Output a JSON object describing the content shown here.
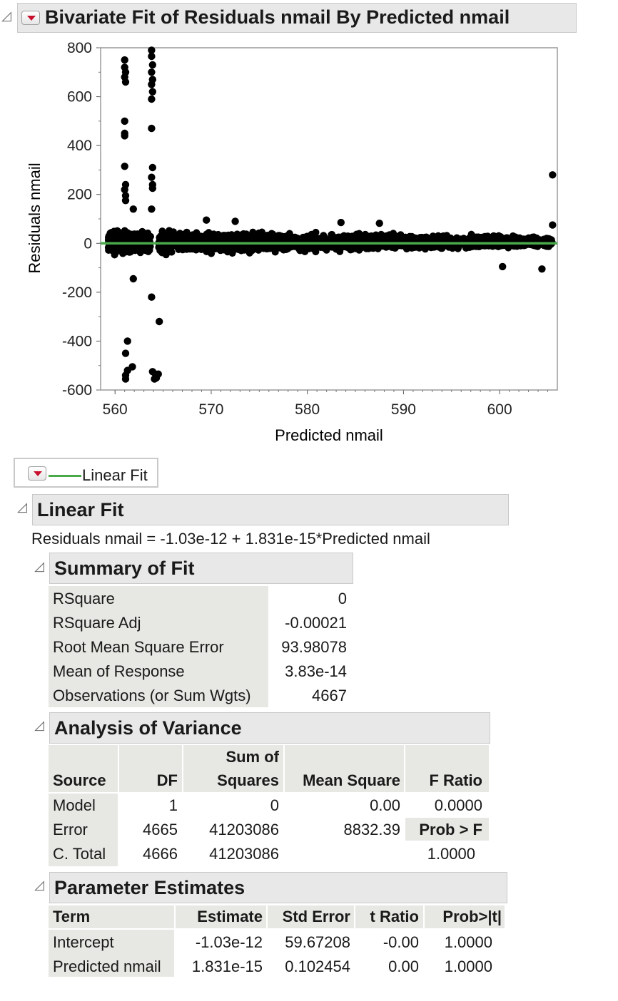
{
  "report": {
    "title": "Bivariate Fit of Residuals nmail By Predicted nmail"
  },
  "chart_data": {
    "type": "scatter",
    "xlabel": "Predicted nmail",
    "ylabel": "Residuals nmail",
    "xlim": [
      558.5,
      606
    ],
    "ylim": [
      -600,
      800
    ],
    "x_ticks": [
      "560",
      "570",
      "580",
      "590",
      "600"
    ],
    "y_ticks": [
      "800",
      "600",
      "400",
      "200",
      "0",
      "-200",
      "-400",
      "-600"
    ],
    "fit_line": {
      "intercept": 0,
      "slope": 0,
      "color": "#4aaa4a"
    },
    "point_color": "#000000",
    "outliers": [
      [
        561.0,
        750
      ],
      [
        561.0,
        720
      ],
      [
        561.1,
        700
      ],
      [
        561.0,
        680
      ],
      [
        561.1,
        660
      ],
      [
        561.0,
        500
      ],
      [
        561.0,
        450
      ],
      [
        561.0,
        440
      ],
      [
        561.0,
        315
      ],
      [
        561.1,
        240
      ],
      [
        561.0,
        220
      ],
      [
        561.1,
        195
      ],
      [
        561.1,
        175
      ],
      [
        561.9,
        140
      ],
      [
        561.9,
        -145
      ],
      [
        561.3,
        -400
      ],
      [
        561.1,
        -450
      ],
      [
        561.3,
        -520
      ],
      [
        561.1,
        -540
      ],
      [
        561.1,
        -555
      ],
      [
        561.8,
        -505
      ],
      [
        563.8,
        790
      ],
      [
        563.8,
        765
      ],
      [
        563.9,
        730
      ],
      [
        563.8,
        700
      ],
      [
        563.9,
        670
      ],
      [
        563.8,
        650
      ],
      [
        563.9,
        620
      ],
      [
        563.8,
        590
      ],
      [
        563.8,
        470
      ],
      [
        563.9,
        310
      ],
      [
        563.8,
        270
      ],
      [
        563.9,
        240
      ],
      [
        563.9,
        225
      ],
      [
        563.8,
        140
      ],
      [
        563.8,
        -220
      ],
      [
        564.6,
        -320
      ],
      [
        563.9,
        -525
      ],
      [
        564.2,
        -535
      ],
      [
        564.5,
        -535
      ],
      [
        564.1,
        -555
      ],
      [
        564.3,
        -550
      ],
      [
        600.3,
        -95
      ],
      [
        604.4,
        -105
      ],
      [
        605.5,
        280
      ],
      [
        605.5,
        75
      ],
      [
        569.5,
        95
      ],
      [
        572.5,
        90
      ],
      [
        583.5,
        85
      ],
      [
        587.5,
        82
      ]
    ]
  },
  "linear_fit_legend": {
    "label": "Linear Fit",
    "line_color": "#4aaa4a"
  },
  "linear_fit": {
    "title": "Linear Fit",
    "equation": "Residuals nmail = -1.03e-12 + 1.831e-15*Predicted nmail"
  },
  "summary_of_fit": {
    "title": "Summary of Fit",
    "rows": [
      {
        "label": "RSquare",
        "value": "0"
      },
      {
        "label": "RSquare Adj",
        "value": "-0.00021"
      },
      {
        "label": "Root Mean Square Error",
        "value": "93.98078"
      },
      {
        "label": "Mean of Response",
        "value": "3.83e-14"
      },
      {
        "label": "Observations (or Sum Wgts)",
        "value": "4667"
      }
    ]
  },
  "anova": {
    "title": "Analysis of Variance",
    "headers": {
      "source": "Source",
      "df": "DF",
      "ss_line1": "Sum of",
      "ss_line2": "Squares",
      "ms": "Mean Square",
      "f": "F Ratio",
      "prob": "Prob > F"
    },
    "rows": [
      {
        "source": "Model",
        "df": "1",
        "ss": "0",
        "ms": "0.00",
        "f": "0.0000"
      },
      {
        "source": "Error",
        "df": "4665",
        "ss": "41203086",
        "ms": "8832.39"
      },
      {
        "source": "C. Total",
        "df": "4666",
        "ss": "41203086",
        "prob": "1.0000"
      }
    ]
  },
  "parameter_estimates": {
    "title": "Parameter Estimates",
    "headers": {
      "term": "Term",
      "estimate": "Estimate",
      "std_error": "Std Error",
      "t_ratio": "t Ratio",
      "prob": "Prob>|t|"
    },
    "rows": [
      {
        "term": "Intercept",
        "estimate": "-1.03e-12",
        "std_error": "59.67208",
        "t_ratio": "-0.00",
        "prob": "1.0000"
      },
      {
        "term": "Predicted nmail",
        "estimate": "1.831e-15",
        "std_error": "0.102454",
        "t_ratio": "0.00",
        "prob": "1.0000"
      }
    ]
  }
}
